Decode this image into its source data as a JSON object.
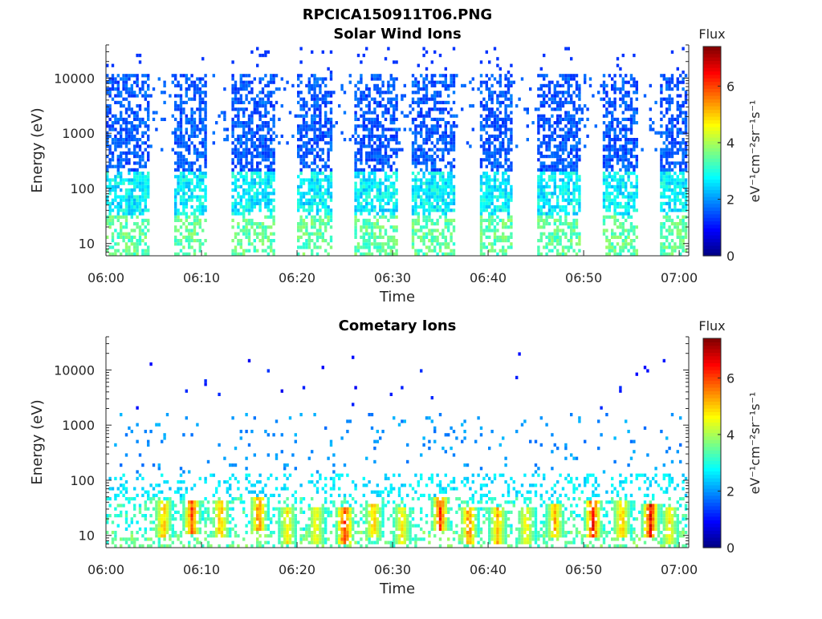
{
  "figure_title": "RPCICA150911T06.PNG",
  "chart_data": [
    {
      "type": "heatmap",
      "title": "Solar Wind Ions",
      "xlabel": "Time",
      "ylabel": "Energy (eV)",
      "x_range": [
        "06:00",
        "07:01"
      ],
      "x_ticks": [
        "06:00",
        "06:10",
        "06:20",
        "06:30",
        "06:40",
        "06:50",
        "07:00"
      ],
      "y_scale": "log",
      "ylim": [
        6,
        40000
      ],
      "y_ticks": [
        10,
        100,
        1000,
        10000
      ],
      "y_tick_labels": [
        "10",
        "100",
        "1000",
        "10000"
      ],
      "colorbar": {
        "title": "Flux",
        "label": "eV⁻¹cm⁻²sr⁻¹s⁻¹",
        "min": 0,
        "max": 7.4,
        "ticks": [
          0,
          2,
          4,
          6
        ],
        "colormap": "jet"
      },
      "bursts": [
        {
          "start": "06:00",
          "end": "06:04",
          "peak_flux_low_energy": 3.5,
          "peak_flux_high_energy": 1.6
        },
        {
          "start": "06:07",
          "end": "06:10",
          "peak_flux_low_energy": 3.5,
          "peak_flux_high_energy": 1.6
        },
        {
          "start": "06:13",
          "end": "06:17",
          "peak_flux_low_energy": 3.5,
          "peak_flux_high_energy": 1.6
        },
        {
          "start": "06:20",
          "end": "06:23",
          "peak_flux_low_energy": 3.5,
          "peak_flux_high_energy": 1.6
        },
        {
          "start": "06:26",
          "end": "06:30",
          "peak_flux_low_energy": 3.5,
          "peak_flux_high_energy": 1.6
        },
        {
          "start": "06:32",
          "end": "06:36",
          "peak_flux_low_energy": 3.5,
          "peak_flux_high_energy": 1.6
        },
        {
          "start": "06:39",
          "end": "06:42",
          "peak_flux_low_energy": 3.5,
          "peak_flux_high_energy": 1.6
        },
        {
          "start": "06:45",
          "end": "06:49",
          "peak_flux_low_energy": 3.5,
          "peak_flux_high_energy": 1.6
        },
        {
          "start": "06:52",
          "end": "06:55",
          "peak_flux_low_energy": 3.5,
          "peak_flux_high_energy": 1.6
        },
        {
          "start": "06:58",
          "end": "07:01",
          "peak_flux_low_energy": 3.5,
          "peak_flux_high_energy": 1.6
        }
      ]
    },
    {
      "type": "heatmap",
      "title": "Cometary Ions",
      "xlabel": "Time",
      "ylabel": "Energy (eV)",
      "x_range": [
        "06:00",
        "07:01"
      ],
      "x_ticks": [
        "06:00",
        "06:10",
        "06:20",
        "06:30",
        "06:40",
        "06:50",
        "07:00"
      ],
      "y_scale": "log",
      "ylim": [
        6,
        40000
      ],
      "y_ticks": [
        10,
        100,
        1000,
        10000
      ],
      "y_tick_labels": [
        "10",
        "100",
        "1000",
        "10000"
      ],
      "colorbar": {
        "title": "Flux",
        "label": "eV⁻¹cm⁻²sr⁻¹s⁻¹",
        "min": 0,
        "max": 7.4,
        "ticks": [
          0,
          2,
          4,
          6
        ],
        "colormap": "jet"
      },
      "hot_spots": [
        {
          "time": "06:06",
          "energy": 20,
          "flux": 5.5
        },
        {
          "time": "06:09",
          "energy": 22,
          "flux": 6.5
        },
        {
          "time": "06:12",
          "energy": 20,
          "flux": 5.5
        },
        {
          "time": "06:16",
          "energy": 25,
          "flux": 6.0
        },
        {
          "time": "06:19",
          "energy": 15,
          "flux": 5.0
        },
        {
          "time": "06:22",
          "energy": 15,
          "flux": 5.0
        },
        {
          "time": "06:25",
          "energy": 15,
          "flux": 6.8
        },
        {
          "time": "06:28",
          "energy": 18,
          "flux": 5.5
        },
        {
          "time": "06:31",
          "energy": 15,
          "flux": 5.0
        },
        {
          "time": "06:35",
          "energy": 25,
          "flux": 6.5
        },
        {
          "time": "06:38",
          "energy": 15,
          "flux": 6.0
        },
        {
          "time": "06:41",
          "energy": 15,
          "flux": 5.5
        },
        {
          "time": "06:44",
          "energy": 15,
          "flux": 5.0
        },
        {
          "time": "06:47",
          "energy": 18,
          "flux": 5.5
        },
        {
          "time": "06:51",
          "energy": 20,
          "flux": 7.0
        },
        {
          "time": "06:54",
          "energy": 20,
          "flux": 5.5
        },
        {
          "time": "06:57",
          "energy": 18,
          "flux": 7.0
        },
        {
          "time": "06:59",
          "energy": 15,
          "flux": 5.0
        }
      ]
    }
  ]
}
